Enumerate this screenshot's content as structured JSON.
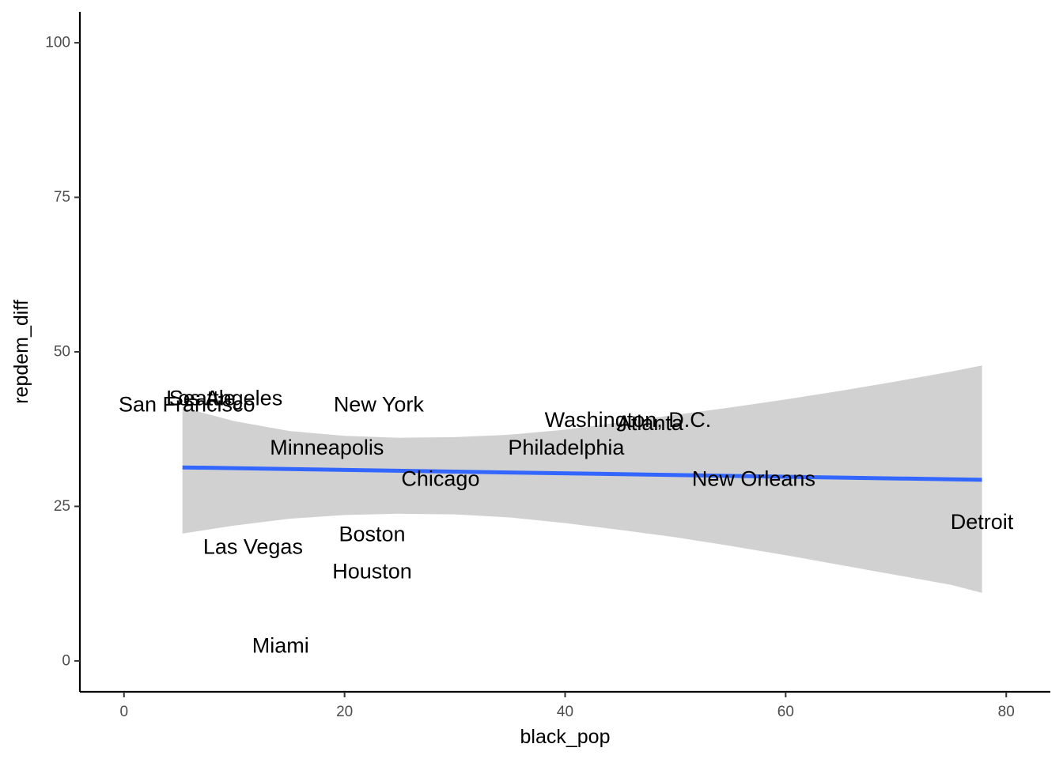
{
  "chart_data": {
    "type": "scatter",
    "title": "",
    "xlabel": "black_pop",
    "ylabel": "repdem_diff",
    "xlim": [
      -4,
      84
    ],
    "ylim": [
      -5,
      105
    ],
    "x_ticks": [
      0,
      20,
      40,
      60,
      80
    ],
    "y_ticks": [
      0,
      25,
      50,
      75,
      100
    ],
    "grid": false,
    "points": [
      {
        "label": "San Francisco",
        "x": 5.7,
        "y": 41.5
      },
      {
        "label": "Seattle",
        "x": 7.1,
        "y": 42.5
      },
      {
        "label": "Los Angeles",
        "x": 9.1,
        "y": 42.5
      },
      {
        "label": "New York",
        "x": 23.1,
        "y": 41.5
      },
      {
        "label": "Washington, D.C.",
        "x": 45.7,
        "y": 39.0
      },
      {
        "label": "Atlanta",
        "x": 47.7,
        "y": 38.5
      },
      {
        "label": "Minneapolis",
        "x": 18.4,
        "y": 34.5
      },
      {
        "label": "Philadelphia",
        "x": 40.1,
        "y": 34.5
      },
      {
        "label": "Chicago",
        "x": 28.7,
        "y": 29.5
      },
      {
        "label": "New Orleans",
        "x": 57.1,
        "y": 29.5
      },
      {
        "label": "Detroit",
        "x": 77.8,
        "y": 22.5
      },
      {
        "label": "Boston",
        "x": 22.5,
        "y": 20.5
      },
      {
        "label": "Las Vegas",
        "x": 11.7,
        "y": 18.5
      },
      {
        "label": "Houston",
        "x": 22.5,
        "y": 14.5
      },
      {
        "label": "Miami",
        "x": 14.2,
        "y": 2.5
      }
    ],
    "trend": {
      "method": "linear",
      "x": [
        5.3,
        77.8
      ],
      "y": [
        31.3,
        29.3
      ],
      "color": "#3366FF"
    },
    "confidence_band": {
      "color": "#999999",
      "opacity": 0.45,
      "x": [
        5.3,
        10,
        15,
        20,
        25,
        30,
        35,
        40,
        45,
        50,
        55,
        60,
        65,
        70,
        75,
        77.8
      ],
      "upper": [
        41.0,
        38.8,
        37.2,
        36.4,
        36.1,
        36.2,
        36.6,
        37.4,
        38.6,
        39.8,
        41.0,
        42.3,
        43.7,
        45.2,
        46.8,
        47.8
      ],
      "lower": [
        20.6,
        21.9,
        23.0,
        23.6,
        23.8,
        23.7,
        23.2,
        22.3,
        21.2,
        20.0,
        18.6,
        17.1,
        15.5,
        13.9,
        12.3,
        11.0
      ]
    }
  }
}
